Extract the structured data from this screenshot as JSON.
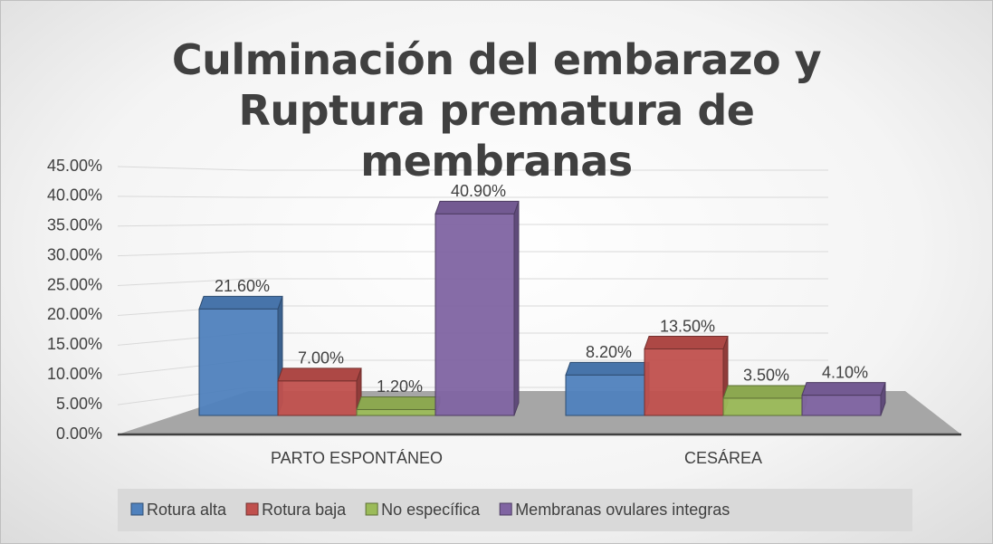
{
  "chart_data": {
    "type": "bar3d",
    "title": "Culminación del embarazo y Ruptura prematura de membranas",
    "categories": [
      "PARTO ESPONTÁNEO",
      "CESÁREA"
    ],
    "series": [
      {
        "name": "Rotura alta",
        "color": "#4f81bd",
        "values": [
          21.6,
          8.2
        ],
        "value_labels": [
          "21.60%",
          "8.20%"
        ]
      },
      {
        "name": "Rotura baja",
        "color": "#c0504d",
        "values": [
          7.0,
          13.5
        ],
        "value_labels": [
          "7.00%",
          "13.50%"
        ]
      },
      {
        "name": "No específica",
        "color": "#9bbb59",
        "values": [
          1.2,
          3.5
        ],
        "value_labels": [
          "1.20%",
          "3.50%"
        ]
      },
      {
        "name": "Membranas ovulares integras",
        "color": "#8064a2",
        "values": [
          40.9,
          4.1
        ],
        "value_labels": [
          "40.90%",
          "4.10%"
        ]
      }
    ],
    "ylim": [
      0,
      45
    ],
    "yticks": [
      {
        "value": 0,
        "label": "0.00%"
      },
      {
        "value": 5,
        "label": "5.00%"
      },
      {
        "value": 10,
        "label": "10.00%"
      },
      {
        "value": 15,
        "label": "15.00%"
      },
      {
        "value": 20,
        "label": "20.00%"
      },
      {
        "value": 25,
        "label": "25.00%"
      },
      {
        "value": 30,
        "label": "30.00%"
      },
      {
        "value": 35,
        "label": "35.00%"
      },
      {
        "value": 40,
        "label": "40.00%"
      },
      {
        "value": 45,
        "label": "45.00%"
      }
    ],
    "grid": true,
    "legend": "bottom"
  }
}
